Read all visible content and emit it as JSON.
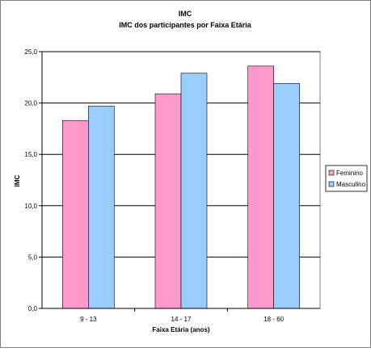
{
  "chart_data": {
    "type": "bar",
    "title": "IMC",
    "subtitle": "IMC dos participantes por Faixa Etária",
    "xlabel": "Faixa Etária (anos)",
    "ylabel": "IMC",
    "categories": [
      "9 - 13",
      "14 - 17",
      "18 - 60"
    ],
    "series": [
      {
        "name": "Feminino",
        "values": [
          18.3,
          20.9,
          23.6
        ],
        "color": "#ff99cc"
      },
      {
        "name": "Masculino",
        "values": [
          19.7,
          22.9,
          21.9
        ],
        "color": "#99ccff"
      }
    ],
    "ylim": [
      0,
      25
    ],
    "yticks": [
      0,
      5,
      10,
      15,
      20,
      25
    ],
    "ytick_labels": [
      "0,0",
      "5,0",
      "10,0",
      "15,0",
      "20,0",
      "25,0"
    ],
    "grid": true,
    "legend_position": "right",
    "colors": {
      "plot_background": "#ffffff",
      "gridline": "#000000",
      "border": "#808080",
      "bar_outline": "#000000"
    }
  }
}
